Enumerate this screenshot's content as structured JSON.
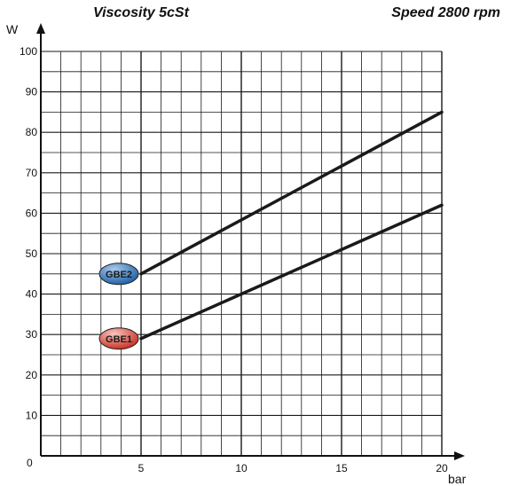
{
  "header": {
    "left_title": "Viscosity 5cSt",
    "right_title": "Speed 2800 rpm"
  },
  "chart_data": {
    "type": "line",
    "title": "",
    "xlabel": "bar",
    "ylabel": "W",
    "xlim": [
      0,
      20
    ],
    "ylim": [
      0,
      100
    ],
    "x_ticks": [
      0,
      5,
      10,
      15,
      20
    ],
    "y_ticks": [
      10,
      20,
      30,
      40,
      50,
      60,
      70,
      80,
      90,
      100
    ],
    "grid": true,
    "series": [
      {
        "name": "GBE2",
        "x": [
          5,
          20
        ],
        "y": [
          45,
          85
        ],
        "marker_colors": [
          "#1a5fa6",
          "#a9c8ea"
        ]
      },
      {
        "name": "GBE1",
        "x": [
          5,
          20
        ],
        "y": [
          29,
          62
        ],
        "marker_colors": [
          "#cc2a1f",
          "#f6c7bf"
        ]
      }
    ]
  }
}
